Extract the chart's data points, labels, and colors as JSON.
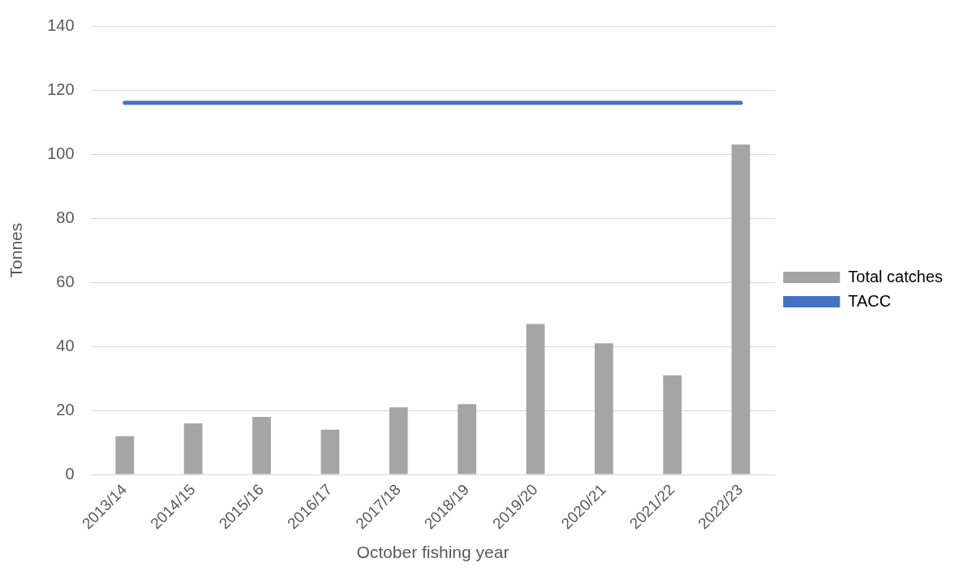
{
  "chart_data": {
    "type": "bar",
    "xlabel": "October fishing year",
    "ylabel": "Tonnes",
    "categories": [
      "2013/14",
      "2014/15",
      "2015/16",
      "2016/17",
      "2017/18",
      "2018/19",
      "2019/20",
      "2020/21",
      "2021/22",
      "2022/23"
    ],
    "series": [
      {
        "name": "Total catches",
        "color": "#a5a5a5",
        "values": [
          12,
          16,
          18,
          14,
          21,
          22,
          47,
          41,
          31,
          103
        ]
      },
      {
        "name": "TACC",
        "type": "line",
        "color": "#4472c4",
        "values": [
          116,
          116,
          116,
          116,
          116,
          116,
          116,
          116,
          116,
          116
        ]
      }
    ],
    "ylim": [
      0,
      140
    ],
    "yticks": [
      0,
      20,
      40,
      60,
      80,
      100,
      120,
      140
    ],
    "grid": "y",
    "legend": "right",
    "marker": "none"
  }
}
